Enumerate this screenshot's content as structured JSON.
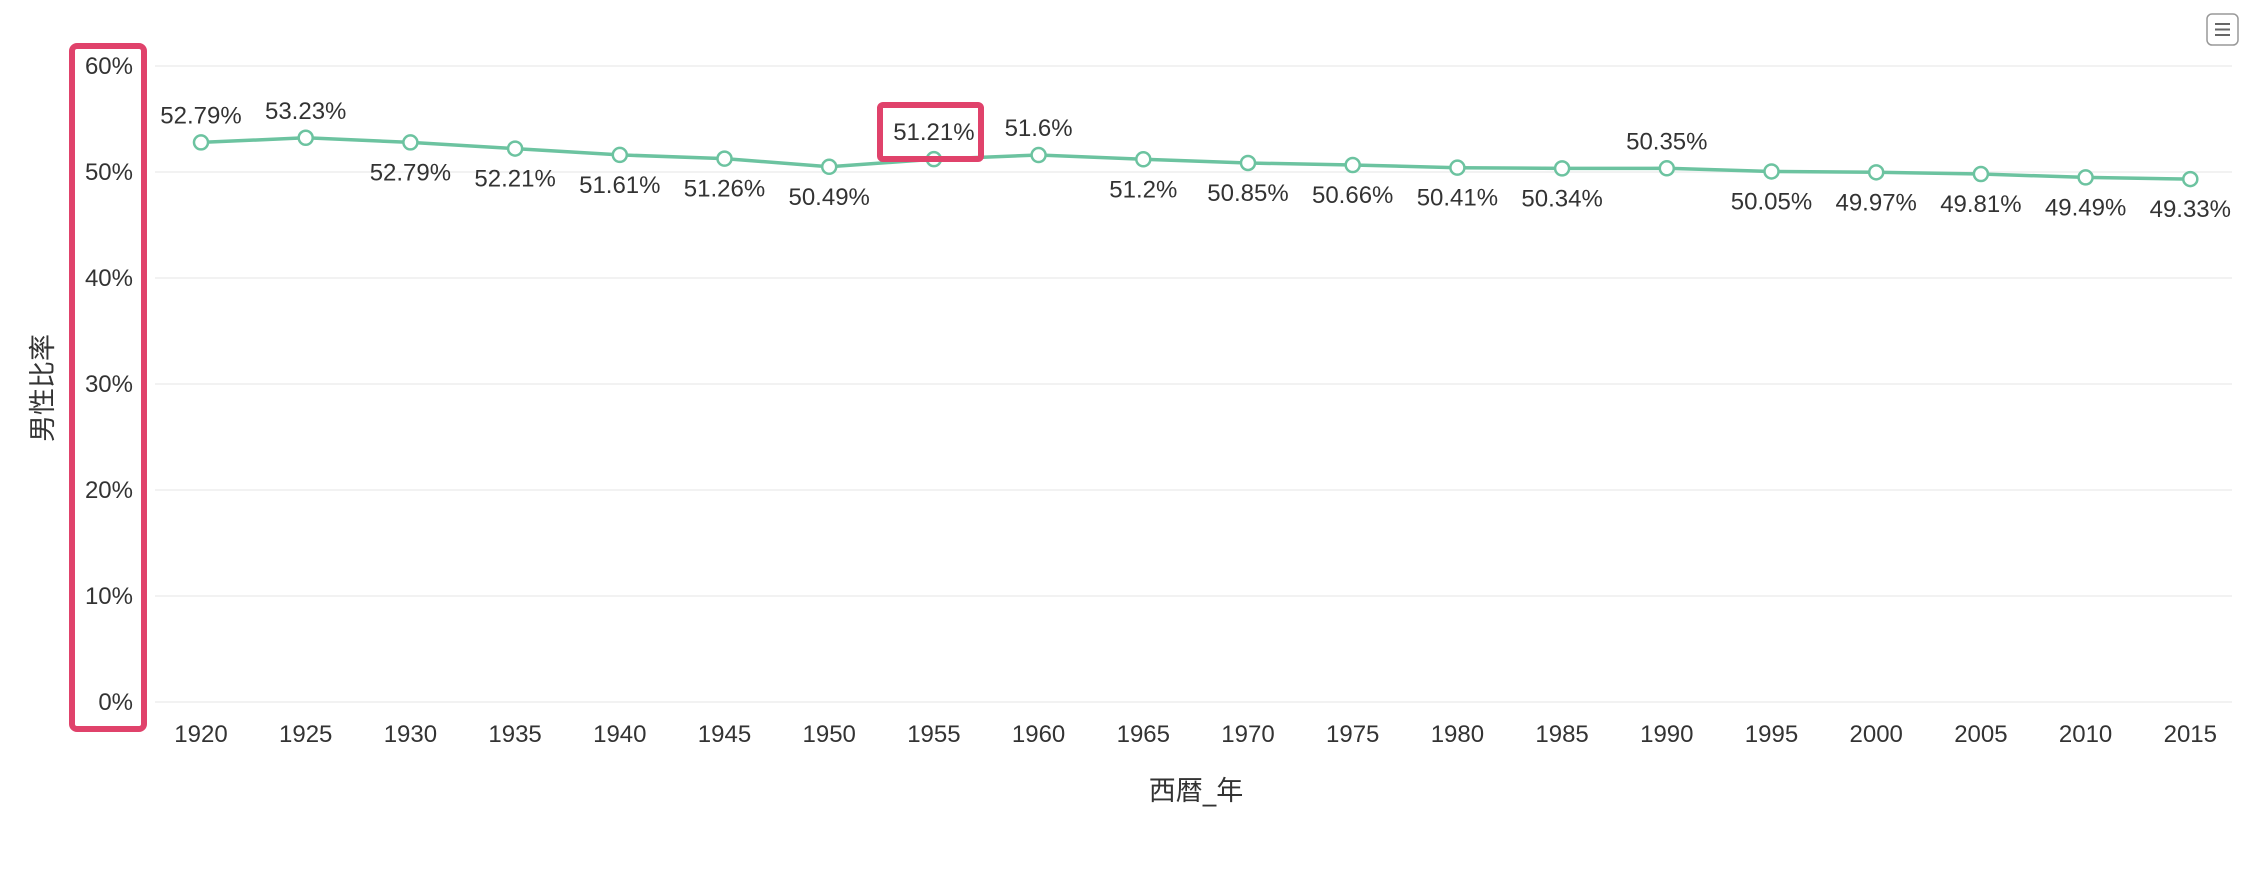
{
  "chart_data": {
    "type": "line",
    "x": [
      "1920",
      "1925",
      "1930",
      "1935",
      "1940",
      "1945",
      "1950",
      "1955",
      "1960",
      "1965",
      "1970",
      "1975",
      "1980",
      "1985",
      "1990",
      "1995",
      "2000",
      "2005",
      "2010",
      "2015"
    ],
    "series": [
      {
        "values": [
          52.79,
          53.23,
          52.79,
          52.21,
          51.61,
          51.26,
          50.49,
          51.21,
          51.6,
          51.2,
          50.85,
          50.66,
          50.41,
          50.34,
          50.35,
          50.05,
          49.97,
          49.81,
          49.49,
          49.33
        ],
        "labels": [
          "52.79%",
          "53.23%",
          "52.79%",
          "52.21%",
          "51.61%",
          "51.26%",
          "50.49%",
          "51.21%",
          "51.6%",
          "51.2%",
          "50.85%",
          "50.66%",
          "50.41%",
          "50.34%",
          "50.35%",
          "50.05%",
          "49.97%",
          "49.81%",
          "49.49%",
          "49.33%"
        ],
        "color": "#6cc3a0"
      }
    ],
    "xlabel": "西暦_年",
    "ylabel": "男性比率",
    "ylim": [
      0,
      60
    ],
    "yticks": [
      "0%",
      "10%",
      "20%",
      "30%",
      "40%",
      "50%",
      "60%"
    ],
    "grid": true,
    "highlight": {
      "color": "#e0426b",
      "regions": [
        "y-axis tick labels",
        "1955 data label"
      ]
    }
  },
  "toolbar": {
    "menu_icon": "hamburger-menu-icon"
  }
}
